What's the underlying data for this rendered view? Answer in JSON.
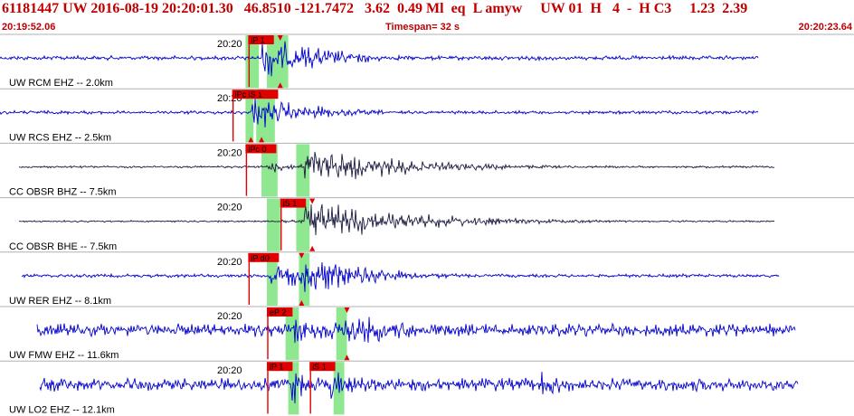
{
  "header": {
    "title": "61181447 UW 2016-08-19 20:20:01.30   46.8510 -121.7472   3.62  0.49 Ml  eq  L amyw     UW 01  H   4  -  H C3     1.23  2.39",
    "start_time": "20:19:52.06",
    "timespan": "Timespan=  32 s",
    "end_time": "20:20:23.64"
  },
  "colors": {
    "header_text": "#c00000",
    "trace_blue": "#0000cc",
    "trace_dark": "#1a1a40",
    "pick_window": "#8fe88f",
    "pick_label_bg": "#e00000",
    "separator": "#b0b0b0"
  },
  "chart_data": {
    "type": "seismogram",
    "time_range_s": [
      0,
      32
    ],
    "time_tick_label": "20:20",
    "traces": [
      {
        "label": "UW RCM EHZ -- 2.0km",
        "color": "blue",
        "data_start_s": 0.0,
        "data_end_s": 28.4,
        "noise": 0.1,
        "onsets": [
          {
            "t": 9.8,
            "amp": 1.0,
            "decay": 2.6
          },
          {
            "t": 10.4,
            "amp": 0.8,
            "decay": 2.0
          }
        ],
        "windows": [
          [
            9.2,
            9.7
          ],
          [
            10.0,
            10.8
          ]
        ],
        "picks": [
          {
            "t": 9.3,
            "label": "iP 1"
          }
        ],
        "arrivals_top": [
          10.5
        ],
        "arrivals_bottom": [
          10.5
        ]
      },
      {
        "label": "UW RCS EHZ -- 2.5km",
        "color": "blue",
        "data_start_s": 0.0,
        "data_end_s": 28.4,
        "noise": 0.08,
        "onsets": [
          {
            "t": 9.4,
            "amp": 0.8,
            "decay": 2.4
          },
          {
            "t": 9.9,
            "amp": 0.7,
            "decay": 2.2
          }
        ],
        "windows": [
          [
            9.2,
            9.5
          ],
          [
            9.6,
            10.3
          ]
        ],
        "picks": [
          {
            "t": 8.7,
            "label": "iPc iS 1"
          }
        ],
        "arrivals_top": [
          9.8
        ],
        "arrivals_bottom": [
          9.4,
          9.8
        ]
      },
      {
        "label": "CC OBSR BHZ -- 7.5km",
        "color": "dark",
        "data_start_s": 0.7,
        "data_end_s": 29.0,
        "noise": 0.05,
        "onsets": [
          {
            "t": 10.0,
            "amp": 0.3,
            "decay": 1.5
          },
          {
            "t": 11.4,
            "amp": 1.0,
            "decay": 3.5
          }
        ],
        "windows": [
          [
            9.8,
            10.4
          ],
          [
            11.1,
            11.6
          ]
        ],
        "picks": [
          {
            "t": 9.2,
            "label": "iPc 0"
          }
        ],
        "arrivals_top": [],
        "arrivals_bottom": []
      },
      {
        "label": "CC OBSR BHE -- 7.5km",
        "color": "dark",
        "data_start_s": 0.7,
        "data_end_s": 29.0,
        "noise": 0.04,
        "onsets": [
          {
            "t": 10.4,
            "amp": 0.15,
            "decay": 1.5
          },
          {
            "t": 11.4,
            "amp": 1.0,
            "decay": 4.0
          }
        ],
        "windows": [
          [
            10.0,
            10.5
          ],
          [
            11.1,
            11.6
          ]
        ],
        "picks": [
          {
            "t": 10.5,
            "label": "iS 1"
          }
        ],
        "arrivals_top": [
          11.7
        ],
        "arrivals_bottom": [
          11.7
        ]
      },
      {
        "label": "UW RER EHZ -- 8.1km",
        "color": "blue",
        "data_start_s": 0.8,
        "data_end_s": 29.2,
        "noise": 0.08,
        "onsets": [
          {
            "t": 10.1,
            "amp": 0.8,
            "decay": 2.0
          },
          {
            "t": 11.4,
            "amp": 1.0,
            "decay": 2.5
          }
        ],
        "windows": [
          [
            10.0,
            10.4
          ],
          [
            11.2,
            11.6
          ]
        ],
        "picks": [
          {
            "t": 9.3,
            "label": "iP d0"
          }
        ],
        "arrivals_top": [
          11.3
        ],
        "arrivals_bottom": [
          11.3
        ]
      },
      {
        "label": "UW FMW EHZ -- 11.6km",
        "color": "blue",
        "data_start_s": 1.4,
        "data_end_s": 29.8,
        "noise": 0.3,
        "onsets": [
          {
            "t": 10.9,
            "amp": 0.9,
            "decay": 2.0
          },
          {
            "t": 12.8,
            "amp": 1.0,
            "decay": 2.5
          }
        ],
        "windows": [
          [
            10.7,
            11.2
          ],
          [
            12.6,
            13.0
          ]
        ],
        "picks": [
          {
            "t": 10.0,
            "label": "eP 2"
          }
        ],
        "arrivals_top": [
          13.0
        ],
        "arrivals_bottom": [
          13.0
        ]
      },
      {
        "label": "UW LO2 EHZ -- 12.1km",
        "color": "blue",
        "data_start_s": 1.5,
        "data_end_s": 29.9,
        "noise": 0.3,
        "onsets": [
          {
            "t": 10.9,
            "amp": 1.0,
            "decay": 0.8
          },
          {
            "t": 12.4,
            "amp": 0.9,
            "decay": 1.2
          },
          {
            "t": 20.3,
            "amp": 0.8,
            "decay": 0.8
          }
        ],
        "windows": [
          [
            10.8,
            11.2
          ],
          [
            12.5,
            12.9
          ]
        ],
        "picks": [
          {
            "t": 10.0,
            "label": "iP 1"
          },
          {
            "t": 11.6,
            "label": "iS 1"
          }
        ],
        "arrivals_top": [],
        "arrivals_bottom": []
      }
    ]
  }
}
